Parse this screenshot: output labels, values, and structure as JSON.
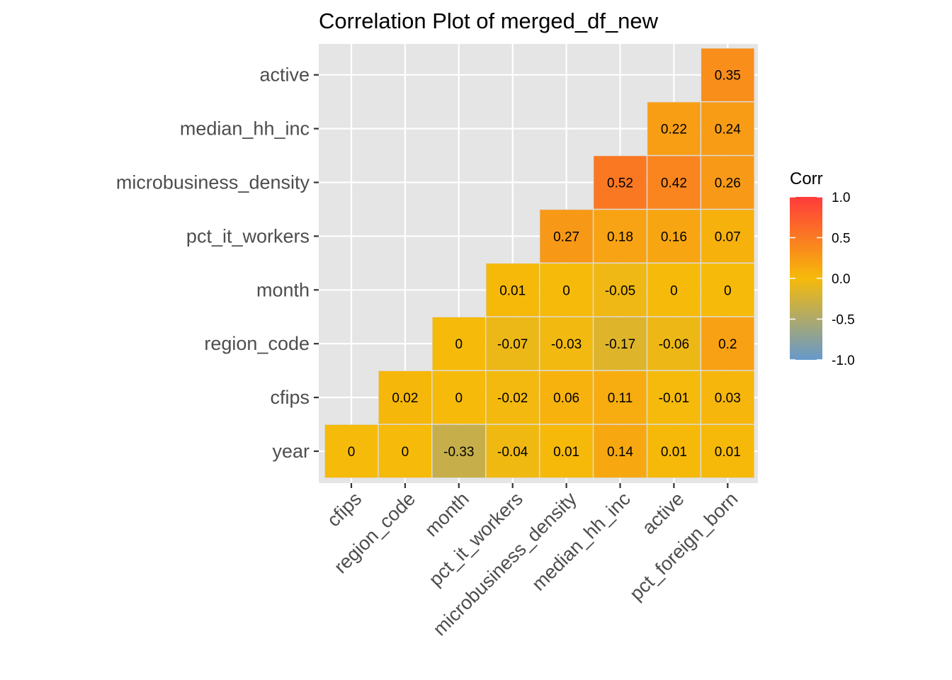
{
  "chart_data": {
    "type": "heatmap",
    "title": "Correlation Plot of merged_df_new",
    "x_categories": [
      "cfips",
      "region_code",
      "month",
      "pct_it_workers",
      "microbusiness_density",
      "median_hh_inc",
      "active",
      "pct_foreign_born"
    ],
    "y_categories": [
      "year",
      "cfips",
      "region_code",
      "month",
      "pct_it_workers",
      "microbusiness_density",
      "median_hh_inc",
      "active"
    ],
    "cells": [
      {
        "x": "cfips",
        "y": "year",
        "value": 0,
        "label": "0"
      },
      {
        "x": "region_code",
        "y": "year",
        "value": 0,
        "label": "0"
      },
      {
        "x": "month",
        "y": "year",
        "value": -0.33,
        "label": "-0.33"
      },
      {
        "x": "pct_it_workers",
        "y": "year",
        "value": -0.04,
        "label": "-0.04"
      },
      {
        "x": "microbusiness_density",
        "y": "year",
        "value": 0.01,
        "label": "0.01"
      },
      {
        "x": "median_hh_inc",
        "y": "year",
        "value": 0.14,
        "label": "0.14"
      },
      {
        "x": "active",
        "y": "year",
        "value": 0.01,
        "label": "0.01"
      },
      {
        "x": "pct_foreign_born",
        "y": "year",
        "value": 0.01,
        "label": "0.01"
      },
      {
        "x": "region_code",
        "y": "cfips",
        "value": 0.02,
        "label": "0.02"
      },
      {
        "x": "month",
        "y": "cfips",
        "value": 0,
        "label": "0"
      },
      {
        "x": "pct_it_workers",
        "y": "cfips",
        "value": -0.02,
        "label": "-0.02"
      },
      {
        "x": "microbusiness_density",
        "y": "cfips",
        "value": 0.06,
        "label": "0.06"
      },
      {
        "x": "median_hh_inc",
        "y": "cfips",
        "value": 0.11,
        "label": "0.11"
      },
      {
        "x": "active",
        "y": "cfips",
        "value": -0.01,
        "label": "-0.01"
      },
      {
        "x": "pct_foreign_born",
        "y": "cfips",
        "value": 0.03,
        "label": "0.03"
      },
      {
        "x": "month",
        "y": "region_code",
        "value": 0,
        "label": "0"
      },
      {
        "x": "pct_it_workers",
        "y": "region_code",
        "value": -0.07,
        "label": "-0.07"
      },
      {
        "x": "microbusiness_density",
        "y": "region_code",
        "value": -0.03,
        "label": "-0.03"
      },
      {
        "x": "median_hh_inc",
        "y": "region_code",
        "value": -0.17,
        "label": "-0.17"
      },
      {
        "x": "active",
        "y": "region_code",
        "value": -0.06,
        "label": "-0.06"
      },
      {
        "x": "pct_foreign_born",
        "y": "region_code",
        "value": 0.2,
        "label": "0.2"
      },
      {
        "x": "pct_it_workers",
        "y": "month",
        "value": 0.01,
        "label": "0.01"
      },
      {
        "x": "microbusiness_density",
        "y": "month",
        "value": 0,
        "label": "0"
      },
      {
        "x": "median_hh_inc",
        "y": "month",
        "value": -0.05,
        "label": "-0.05"
      },
      {
        "x": "active",
        "y": "month",
        "value": 0,
        "label": "0"
      },
      {
        "x": "pct_foreign_born",
        "y": "month",
        "value": 0,
        "label": "0"
      },
      {
        "x": "microbusiness_density",
        "y": "pct_it_workers",
        "value": 0.27,
        "label": "0.27"
      },
      {
        "x": "median_hh_inc",
        "y": "pct_it_workers",
        "value": 0.18,
        "label": "0.18"
      },
      {
        "x": "active",
        "y": "pct_it_workers",
        "value": 0.16,
        "label": "0.16"
      },
      {
        "x": "pct_foreign_born",
        "y": "pct_it_workers",
        "value": 0.07,
        "label": "0.07"
      },
      {
        "x": "median_hh_inc",
        "y": "microbusiness_density",
        "value": 0.52,
        "label": "0.52"
      },
      {
        "x": "active",
        "y": "microbusiness_density",
        "value": 0.42,
        "label": "0.42"
      },
      {
        "x": "pct_foreign_born",
        "y": "microbusiness_density",
        "value": 0.26,
        "label": "0.26"
      },
      {
        "x": "active",
        "y": "median_hh_inc",
        "value": 0.22,
        "label": "0.22"
      },
      {
        "x": "pct_foreign_born",
        "y": "median_hh_inc",
        "value": 0.24,
        "label": "0.24"
      },
      {
        "x": "pct_foreign_born",
        "y": "active",
        "value": 0.35,
        "label": "0.35"
      }
    ],
    "legend": {
      "title": "Corr",
      "range": [
        -1,
        1
      ],
      "ticks": [
        {
          "value": 1.0,
          "label": "1.0"
        },
        {
          "value": 0.5,
          "label": "0.5"
        },
        {
          "value": 0.0,
          "label": "0.0"
        },
        {
          "value": -0.5,
          "label": "-0.5"
        },
        {
          "value": -1.0,
          "label": "-1.0"
        }
      ],
      "placement": "right"
    },
    "colors": {
      "low": "#6699CC",
      "mid": "#F6BA0A",
      "high": "#FF3B3B",
      "panel_background": "#E5E5E5",
      "grid": "#FFFFFF"
    },
    "grid": true
  }
}
